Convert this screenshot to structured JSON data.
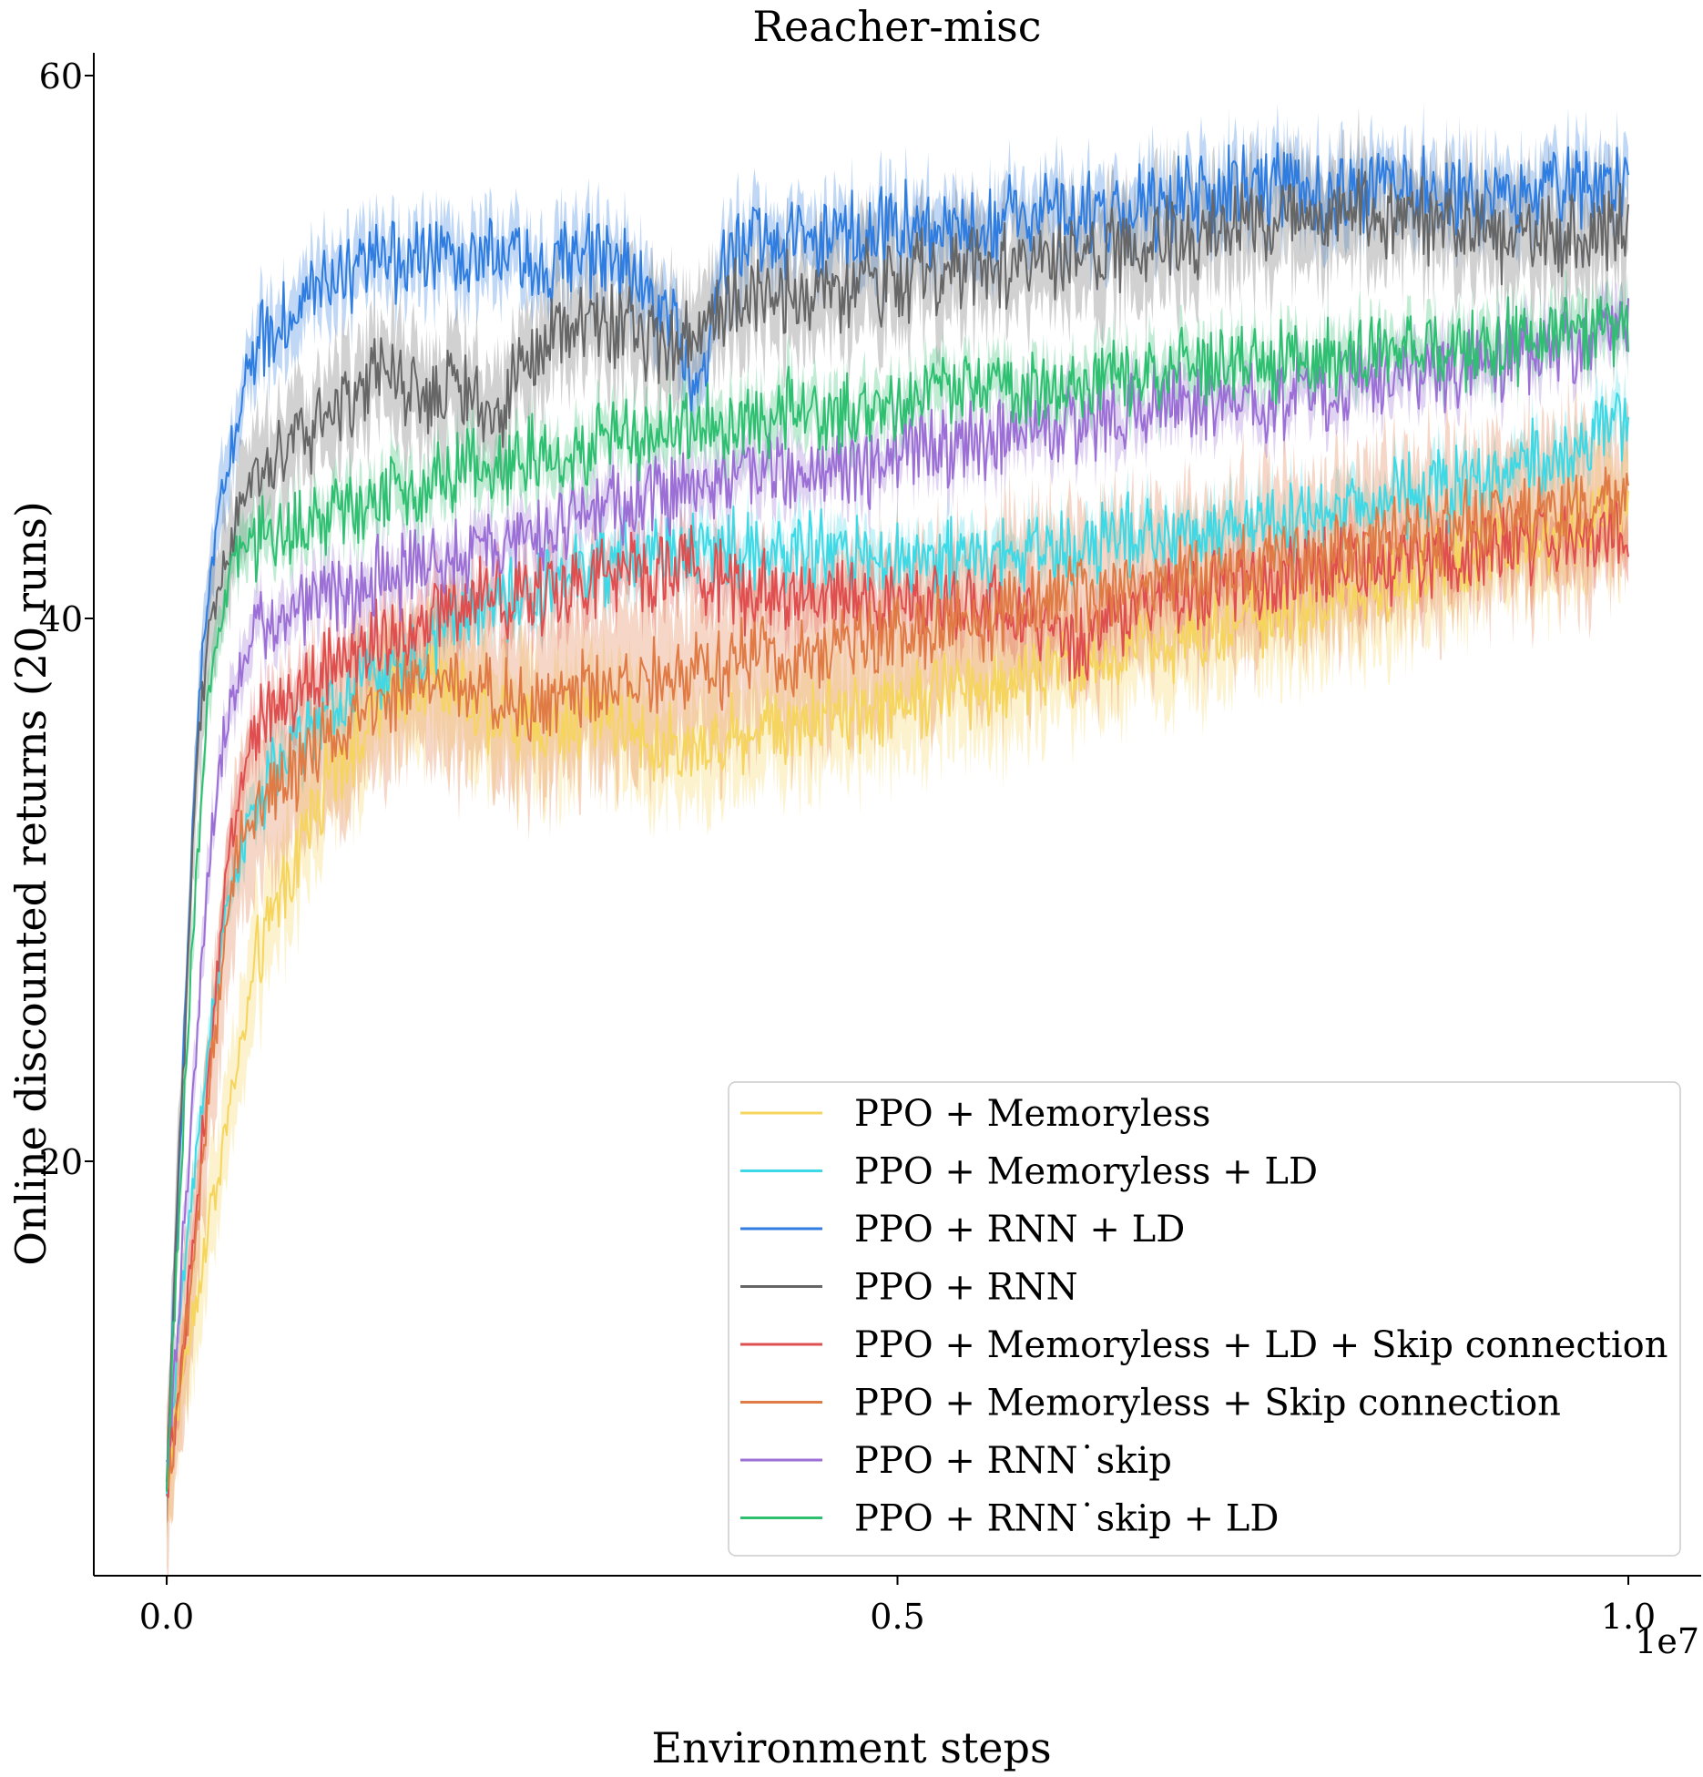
{
  "chart_data": {
    "type": "line",
    "title": "Reacher-misc",
    "xlabel": "Environment steps",
    "ylabel": "Online discounted returns (20 runs)",
    "x_offset_label": "1e7",
    "xlim": [
      -0.05,
      1.05
    ],
    "ylim": [
      5,
      61
    ],
    "x_ticks": [
      0.0,
      0.5,
      1.0
    ],
    "x_tick_labels": [
      "0.0",
      "0.5",
      "1.0"
    ],
    "y_ticks": [
      20,
      40,
      60
    ],
    "y_tick_labels": [
      "20",
      "40",
      "60"
    ],
    "grid": false,
    "legend_position": "lower-right",
    "x_units": "×1e7 environment steps",
    "series": [
      {
        "name": "PPO + Memoryless",
        "color": "#f6d55c",
        "x": [
          0,
          0.01,
          0.02,
          0.03,
          0.04,
          0.05,
          0.06,
          0.08,
          0.1,
          0.12,
          0.15,
          0.18,
          0.2,
          0.25,
          0.3,
          0.35,
          0.4,
          0.45,
          0.5,
          0.55,
          0.6,
          0.65,
          0.7,
          0.75,
          0.8,
          0.85,
          0.9,
          0.95,
          1.0
        ],
        "y": [
          8,
          12,
          15,
          18,
          21,
          24,
          27,
          30,
          33,
          35,
          37,
          38,
          37,
          36,
          36.5,
          35,
          36,
          36.5,
          37,
          37.5,
          38,
          38.5,
          39.5,
          40,
          41,
          41.5,
          42.5,
          43,
          44
        ],
        "band": 2.0
      },
      {
        "name": "PPO + Memoryless + LD",
        "color": "#3dd9e6",
        "x": [
          0,
          0.01,
          0.02,
          0.03,
          0.04,
          0.05,
          0.06,
          0.08,
          0.1,
          0.12,
          0.15,
          0.18,
          0.2,
          0.25,
          0.3,
          0.35,
          0.4,
          0.45,
          0.5,
          0.55,
          0.6,
          0.65,
          0.7,
          0.75,
          0.8,
          0.85,
          0.9,
          0.95,
          1.0
        ],
        "y": [
          8,
          15,
          20,
          25,
          29,
          31,
          33,
          35,
          36,
          37,
          38,
          39,
          40,
          41,
          42,
          42.5,
          42.5,
          42.5,
          42,
          42.2,
          42.5,
          43,
          43,
          43.5,
          44,
          44.5,
          45,
          46,
          47.5
        ],
        "band": 0.8
      },
      {
        "name": "PPO + RNN + LD",
        "color": "#2f7de1",
        "x": [
          0,
          0.01,
          0.02,
          0.03,
          0.04,
          0.05,
          0.06,
          0.08,
          0.1,
          0.12,
          0.15,
          0.18,
          0.2,
          0.25,
          0.3,
          0.35,
          0.36,
          0.37,
          0.38,
          0.4,
          0.45,
          0.5,
          0.55,
          0.6,
          0.65,
          0.7,
          0.75,
          0.8,
          0.85,
          0.9,
          0.95,
          1.0
        ],
        "y": [
          8,
          22,
          35,
          42,
          45,
          48,
          50,
          51,
          52,
          52.5,
          53,
          53.5,
          53.5,
          53,
          53.5,
          51,
          48,
          50,
          53,
          54,
          54,
          54.5,
          54.5,
          55,
          55,
          55.5,
          56,
          55.5,
          56,
          55.5,
          56,
          56
        ],
        "band": 1.2
      },
      {
        "name": "PPO + RNN",
        "color": "#666666",
        "x": [
          0,
          0.01,
          0.02,
          0.03,
          0.04,
          0.05,
          0.06,
          0.08,
          0.1,
          0.12,
          0.15,
          0.18,
          0.2,
          0.22,
          0.25,
          0.3,
          0.35,
          0.4,
          0.45,
          0.5,
          0.55,
          0.6,
          0.65,
          0.7,
          0.75,
          0.8,
          0.85,
          0.9,
          0.95,
          1.0
        ],
        "y": [
          8,
          22,
          34,
          40,
          42,
          44,
          45,
          46,
          47,
          48,
          49,
          48,
          49,
          47,
          50,
          51,
          50,
          52,
          52,
          52.5,
          53,
          53,
          53.5,
          54,
          54.5,
          55,
          55,
          54,
          54,
          54.5
        ],
        "band": 1.8
      },
      {
        "name": "PPO + Memoryless + LD + Skip connection",
        "color": "#e04f50",
        "x": [
          0,
          0.01,
          0.02,
          0.03,
          0.04,
          0.05,
          0.06,
          0.08,
          0.1,
          0.12,
          0.15,
          0.18,
          0.2,
          0.25,
          0.3,
          0.35,
          0.4,
          0.45,
          0.5,
          0.55,
          0.6,
          0.62,
          0.65,
          0.7,
          0.75,
          0.8,
          0.85,
          0.9,
          0.95,
          1.0
        ],
        "y": [
          8,
          12,
          18,
          24,
          30,
          34,
          36,
          37,
          38,
          38.5,
          39.5,
          40,
          40.5,
          41,
          41.5,
          42,
          41,
          41,
          40.5,
          40.5,
          40,
          39,
          40,
          41,
          41.5,
          42,
          42,
          42.5,
          43,
          43.5
        ],
        "band": 1.0
      },
      {
        "name": "PPO + Memoryless + Skip connection",
        "color": "#e07b45",
        "x": [
          0,
          0.01,
          0.02,
          0.03,
          0.04,
          0.05,
          0.06,
          0.08,
          0.1,
          0.12,
          0.15,
          0.18,
          0.2,
          0.25,
          0.3,
          0.35,
          0.4,
          0.45,
          0.5,
          0.55,
          0.6,
          0.65,
          0.7,
          0.75,
          0.8,
          0.85,
          0.9,
          0.95,
          1.0
        ],
        "y": [
          8,
          12,
          17,
          23,
          28,
          32,
          33,
          34,
          35,
          36,
          37,
          38,
          37.5,
          37,
          37.5,
          38,
          38.5,
          39,
          39.5,
          40,
          40.5,
          41,
          41.5,
          42,
          42.5,
          43,
          43.5,
          44,
          44.5
        ],
        "band": 2.8
      },
      {
        "name": "PPO + RNN˙skip",
        "color": "#9b6fd6",
        "x": [
          0,
          0.01,
          0.02,
          0.03,
          0.04,
          0.05,
          0.06,
          0.08,
          0.1,
          0.12,
          0.15,
          0.18,
          0.2,
          0.25,
          0.3,
          0.35,
          0.4,
          0.45,
          0.5,
          0.55,
          0.6,
          0.65,
          0.7,
          0.75,
          0.8,
          0.85,
          0.9,
          0.95,
          1.0
        ],
        "y": [
          8,
          16,
          24,
          32,
          36,
          38,
          39.5,
          40,
          40.5,
          41,
          41.5,
          42,
          42.5,
          43,
          44,
          44.5,
          45.5,
          45.5,
          46,
          46.5,
          47,
          47.5,
          48,
          48,
          48.5,
          49,
          49.5,
          50,
          51
        ],
        "band": 0.9
      },
      {
        "name": "PPO + RNN˙skip + LD",
        "color": "#2fbf71",
        "x": [
          0,
          0.01,
          0.02,
          0.03,
          0.04,
          0.05,
          0.06,
          0.08,
          0.1,
          0.12,
          0.15,
          0.18,
          0.2,
          0.25,
          0.3,
          0.35,
          0.4,
          0.45,
          0.5,
          0.55,
          0.6,
          0.65,
          0.7,
          0.75,
          0.8,
          0.85,
          0.9,
          0.95,
          1.0
        ],
        "y": [
          8,
          20,
          30,
          38,
          41,
          42.5,
          43,
          43,
          43.5,
          44,
          44.5,
          45,
          45.5,
          46,
          46.5,
          47,
          47.5,
          47.5,
          48,
          48.5,
          48.5,
          49,
          49,
          49.5,
          49.5,
          50,
          50,
          50.5,
          51
        ],
        "band": 0.9
      }
    ]
  }
}
